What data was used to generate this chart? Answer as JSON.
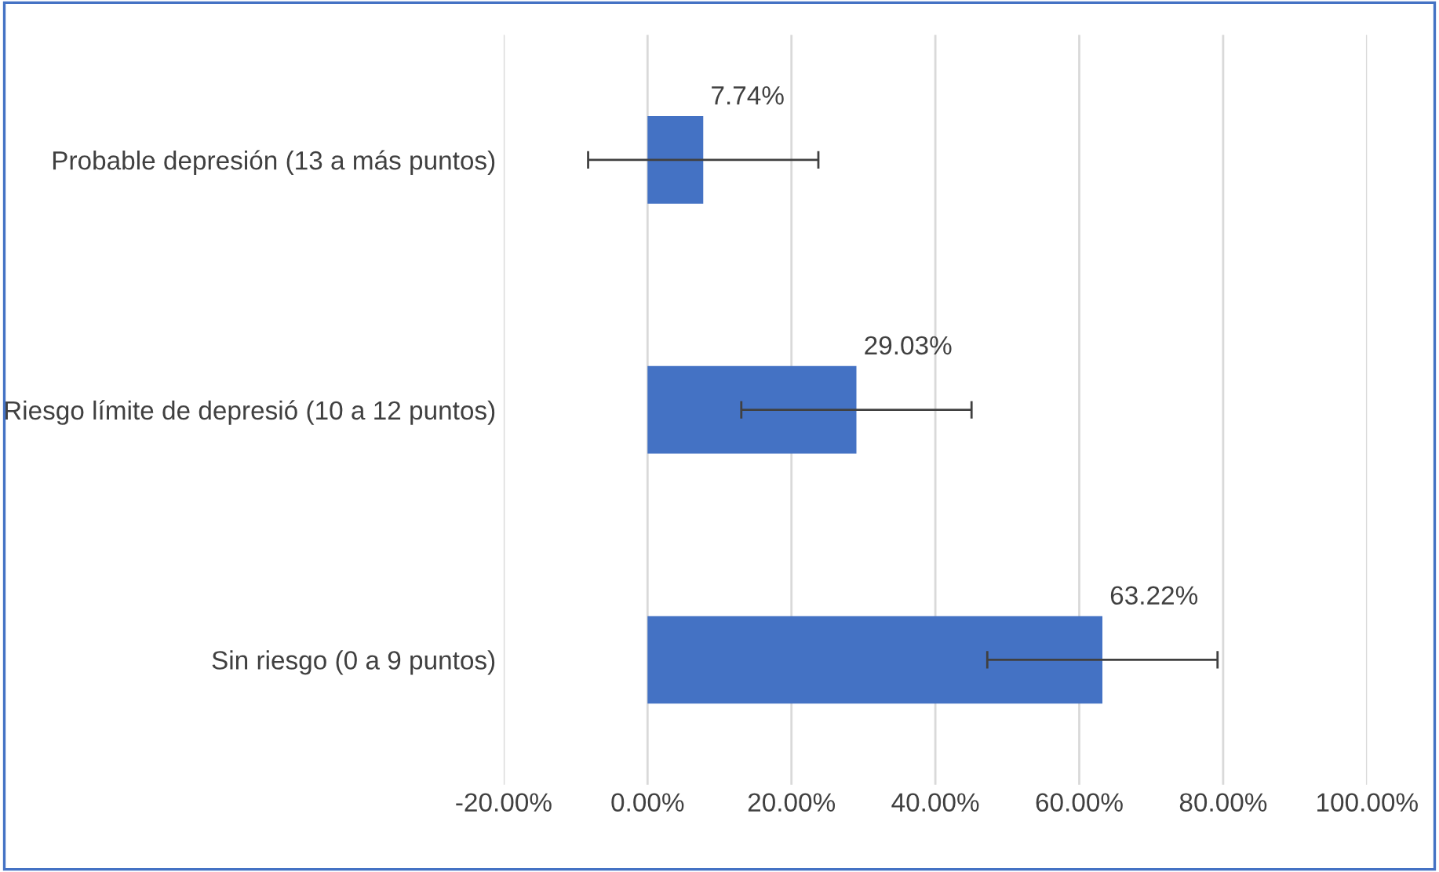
{
  "chart_data": {
    "type": "bar",
    "orientation": "horizontal",
    "categories": [
      "Probable depresión (13 a más puntos)",
      "Riesgo límite de depresió (10 a 12 puntos)",
      "Sin riesgo (0 a 9 puntos)"
    ],
    "values": [
      7.74,
      29.03,
      63.22
    ],
    "errors": [
      16,
      16,
      16
    ],
    "value_labels": [
      "7.74%",
      "29.03%",
      "63.22%"
    ],
    "color": "#4472c4",
    "xlim": [
      -20,
      100
    ],
    "xticks": [
      {
        "value": -20,
        "label": "-20.00%"
      },
      {
        "value": 0,
        "label": "0.00%"
      },
      {
        "value": 20,
        "label": "20.00%"
      },
      {
        "value": 40,
        "label": "40.00%"
      },
      {
        "value": 60,
        "label": "60.00%"
      },
      {
        "value": 80,
        "label": "80.00%"
      },
      {
        "value": 100,
        "label": "100.00%"
      }
    ],
    "grid": "x"
  }
}
